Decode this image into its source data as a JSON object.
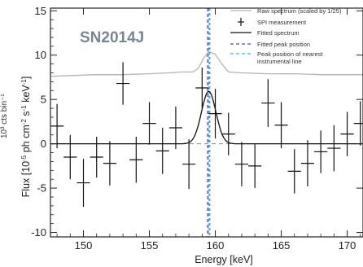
{
  "chart_data": {
    "type": "scatter",
    "title": "",
    "annotation": "SN2014J",
    "xlabel": "Energy [keV]",
    "ylabel": "Flux [10⁻⁵ ph cm⁻² s⁻¹ keV⁻¹]",
    "ylabel_parts": {
      "prefix": "Flux [10",
      "exp1": "-5",
      "mid1": " ph cm",
      "exp2": "-2",
      "mid2": " s",
      "exp3": "-1",
      "mid3": " keV",
      "exp4": "-1",
      "suffix": "]"
    },
    "left_cut_label": "10³ cts bin⁻¹",
    "xlim": [
      147.5,
      171.2
    ],
    "ylim": [
      -10.5,
      15.3
    ],
    "xticks": [
      150,
      155,
      160,
      165,
      170
    ],
    "yticks": [
      -10,
      -5,
      0,
      5,
      10,
      15
    ],
    "legend_position": "top-right",
    "legend": [
      {
        "label": "Raw spectrum (scaled by 1/25)",
        "style": "gray-line"
      },
      {
        "label": "SPI measurement",
        "style": "cross"
      },
      {
        "label": "Fitted spectrum",
        "style": "black-line"
      },
      {
        "label": "Fitted peak position",
        "style": "purple-dash"
      },
      {
        "label": "Peak position of nearest instrumental line",
        "label_lines": [
          "Peak position of nearest",
          "instrumental line"
        ],
        "style": "cyan-dash"
      }
    ],
    "series": [
      {
        "name": "SPI measurement",
        "x": [
          148,
          149,
          150,
          151,
          152,
          153,
          154,
          155,
          156,
          157,
          158,
          159,
          160,
          161,
          162,
          163,
          164,
          165,
          166,
          167,
          168,
          169,
          170,
          171
        ],
        "y": [
          2.0,
          -1.5,
          -4.4,
          -1.5,
          -2.2,
          6.8,
          -1.8,
          2.3,
          -0.8,
          1.8,
          -2.3,
          6.3,
          3.4,
          1.1,
          -2.3,
          -2.5,
          4.6,
          2.1,
          -3.1,
          -2.2,
          -0.9,
          -0.5,
          1.1,
          2.3
        ],
        "yerr": [
          2.5,
          2.5,
          2.7,
          2.3,
          2.5,
          2.4,
          2.6,
          2.4,
          2.6,
          2.4,
          2.8,
          2.3,
          2.8,
          2.4,
          2.5,
          2.5,
          2.7,
          2.6,
          2.5,
          2.6,
          2.4,
          2.6,
          2.5,
          2.5
        ]
      },
      {
        "name": "Fitted spectrum",
        "peak_energy": 159.5,
        "amplitude": 5.9,
        "sigma": 0.55,
        "baseline": 0
      },
      {
        "name": "Raw spectrum (scaled by 1/25)",
        "x": [
          147.5,
          149,
          151,
          153,
          155,
          156.5,
          157.5,
          158.3,
          158.7,
          159.1,
          159.5,
          160.0,
          160.5,
          161.0,
          162,
          164,
          166,
          168,
          171.2
        ],
        "y": [
          7.6,
          7.7,
          7.8,
          7.8,
          7.9,
          8.0,
          8.1,
          8.1,
          8.5,
          9.6,
          10.4,
          10.1,
          9.0,
          8.1,
          8.0,
          7.9,
          7.9,
          7.8,
          7.8
        ]
      }
    ],
    "vertical_lines": [
      {
        "name": "Fitted peak position",
        "x": 159.5,
        "color": "#6b63d9"
      },
      {
        "name": "Peak position of nearest instrumental line",
        "x": 159.5,
        "color": "#3da8e6"
      }
    ],
    "zero_line": {
      "y": 0,
      "style": "dashed"
    }
  }
}
